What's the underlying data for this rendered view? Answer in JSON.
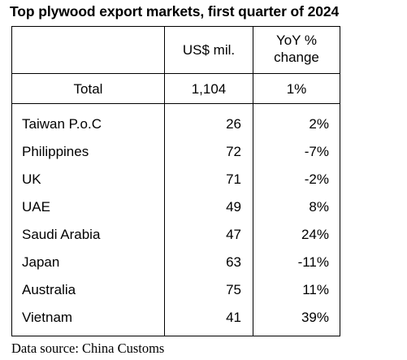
{
  "title": "Top plywood export markets, first quarter of 2024",
  "table": {
    "headers": {
      "col_market": "",
      "col_usd": "US$ mil.",
      "col_yoy_line1": "YoY %",
      "col_yoy_line2": "change"
    },
    "total": {
      "label": "Total",
      "usd": "1,104",
      "yoy": "1%"
    },
    "rows": [
      {
        "market": "Taiwan P.o.C",
        "usd": "26",
        "yoy": "2%"
      },
      {
        "market": "Philippines",
        "usd": "72",
        "yoy": "-7%"
      },
      {
        "market": "UK",
        "usd": "71",
        "yoy": "-2%"
      },
      {
        "market": "UAE",
        "usd": "49",
        "yoy": "8%"
      },
      {
        "market": "Saudi Arabia",
        "usd": "47",
        "yoy": "24%"
      },
      {
        "market": "Japan",
        "usd": "63",
        "yoy": "-11%"
      },
      {
        "market": "Australia",
        "usd": "75",
        "yoy": "11%"
      },
      {
        "market": "Vietnam",
        "usd": "41",
        "yoy": "39%"
      }
    ]
  },
  "source": "Data source: China Customs"
}
